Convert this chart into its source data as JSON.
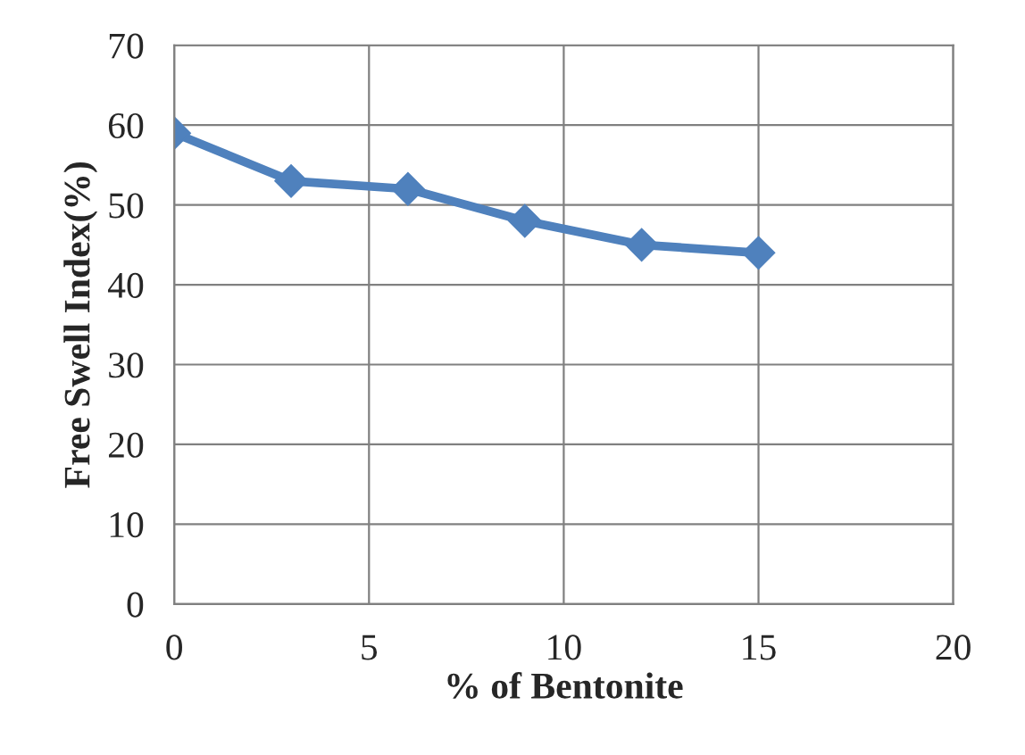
{
  "chart_data": {
    "type": "line",
    "xlabel": "% of Bentonite",
    "ylabel": "Free Swell Index(%)",
    "x": [
      0,
      3,
      6,
      9,
      12,
      15
    ],
    "series": [
      {
        "color": "#4f81bd",
        "values": [
          59,
          53,
          52,
          48,
          45,
          44
        ]
      }
    ],
    "xlim": [
      0,
      20
    ],
    "xticks": [
      0,
      5,
      10,
      15,
      20
    ],
    "ylim": [
      0,
      70
    ],
    "yticks": [
      0,
      10,
      20,
      30,
      40,
      50,
      60,
      70
    ],
    "grid": true,
    "marker": "diamond",
    "line_style": "solid"
  }
}
